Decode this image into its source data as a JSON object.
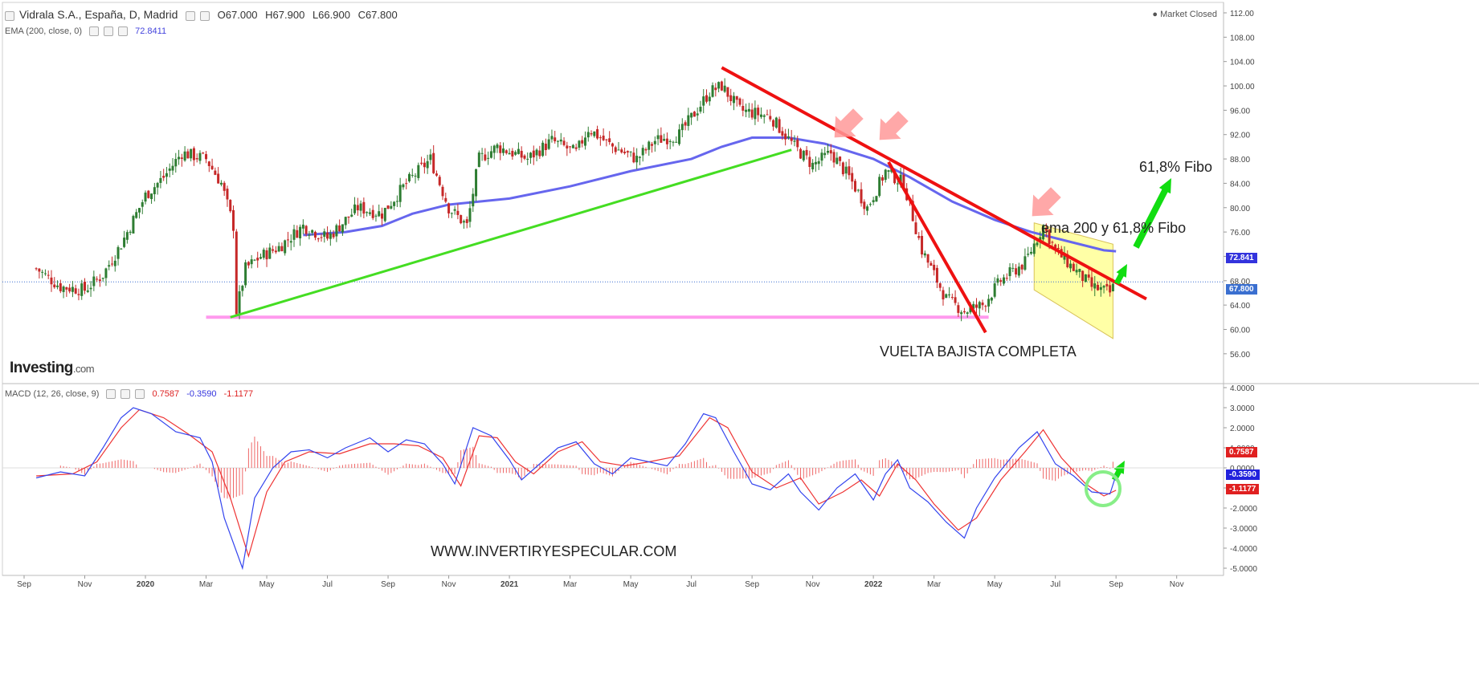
{
  "header": {
    "symbol": "Vidrala S.A., España, D, Madrid",
    "open": "O67.000",
    "high": "H67.900",
    "low": "L66.900",
    "close": "C67.800",
    "market_status": "Market Closed",
    "ema_label": "EMA (200, close, 0)",
    "ema_value": "72.8411",
    "macd_label": "MACD (12, 26, close, 9)",
    "macd_v1": "0.7587",
    "macd_v2": "-0.3590",
    "macd_v3": "-1.1177"
  },
  "brand": {
    "logo": "Investing",
    "logo_suffix": ".com"
  },
  "annotations": {
    "fibo_target": "61,8% Fibo",
    "ema_fibo": "ema 200 y 61,8% Fibo",
    "vuelta": "VUELTA BAJISTA COMPLETA",
    "website": "WWW.INVERTIRYESPECULAR.COM"
  },
  "price_tags": {
    "ema": "72.841",
    "last": "67.800"
  },
  "macd_tags": {
    "hist": "0.7587",
    "macd": "-0.3590",
    "signal": "-1.1177"
  },
  "colors": {
    "up": "#2e7d32",
    "down": "#c62828",
    "ema": "#6666ee",
    "macd": "#3344ee",
    "signal": "#ee3333",
    "support": "#ff99ee",
    "trend_up": "#44dd22",
    "trend_down": "#ee1111",
    "channel": "#ffff88"
  },
  "chart_data": [
    {
      "type": "candlestick",
      "title": "Vidrala S.A., España, D, Madrid",
      "ylim": [
        54,
        112
      ],
      "y_ticks": [
        "112.00",
        "108.00",
        "104.00",
        "100.00",
        "96.00",
        "92.00",
        "88.00",
        "84.00",
        "80.00",
        "76.00",
        "72.00",
        "68.00",
        "64.00",
        "60.00",
        "56.00"
      ],
      "x_ticks": [
        "Sep",
        "Nov",
        "2020",
        "Mar",
        "May",
        "Jul",
        "Sep",
        "Nov",
        "2021",
        "Mar",
        "May",
        "Jul",
        "Sep",
        "Nov",
        "2022",
        "Mar",
        "May",
        "Jul",
        "Sep",
        "Nov"
      ],
      "x_range": [
        0,
        19.6
      ],
      "close_path": [
        [
          0.2,
          70
        ],
        [
          0.6,
          67
        ],
        [
          1.0,
          66.5
        ],
        [
          1.3,
          69
        ],
        [
          1.6,
          74
        ],
        [
          2.0,
          82
        ],
        [
          2.3,
          85
        ],
        [
          2.6,
          89
        ],
        [
          3.0,
          88
        ],
        [
          3.25,
          84
        ],
        [
          3.45,
          77
        ],
        [
          3.5,
          63
        ],
        [
          3.65,
          70
        ],
        [
          3.9,
          72
        ],
        [
          4.2,
          73.5
        ],
        [
          4.6,
          77
        ],
        [
          5.0,
          75
        ],
        [
          5.5,
          80
        ],
        [
          5.9,
          79
        ],
        [
          6.3,
          84
        ],
        [
          6.7,
          88
        ],
        [
          7.0,
          80
        ],
        [
          7.3,
          77
        ],
        [
          7.5,
          88
        ],
        [
          7.8,
          90
        ],
        [
          8.3,
          88
        ],
        [
          8.7,
          91
        ],
        [
          9.1,
          89
        ],
        [
          9.3,
          93
        ],
        [
          9.7,
          90
        ],
        [
          10.1,
          88
        ],
        [
          10.4,
          91
        ],
        [
          10.8,
          92
        ],
        [
          11.3,
          99
        ],
        [
          11.5,
          100
        ],
        [
          11.8,
          96
        ],
        [
          12.3,
          95
        ],
        [
          12.7,
          90
        ],
        [
          13.0,
          87
        ],
        [
          13.3,
          89
        ],
        [
          13.6,
          85
        ],
        [
          13.9,
          80
        ],
        [
          14.2,
          86
        ],
        [
          14.5,
          84
        ],
        [
          14.8,
          73
        ],
        [
          15.2,
          65
        ],
        [
          15.5,
          63
        ],
        [
          15.8,
          64
        ],
        [
          16.1,
          68
        ],
        [
          16.5,
          71
        ],
        [
          16.8,
          77
        ],
        [
          17.0,
          73
        ],
        [
          17.3,
          70
        ],
        [
          17.6,
          67
        ],
        [
          17.9,
          66
        ],
        [
          18.0,
          67.8
        ]
      ],
      "series": [
        {
          "name": "EMA (200, close, 0)",
          "points": [
            [
              4.6,
              75.5
            ],
            [
              5.3,
              76
            ],
            [
              5.9,
              77
            ],
            [
              6.4,
              79
            ],
            [
              7.0,
              80.5
            ],
            [
              8.0,
              81.5
            ],
            [
              9.0,
              83.5
            ],
            [
              10.0,
              86
            ],
            [
              11.0,
              88
            ],
            [
              11.5,
              90
            ],
            [
              12.0,
              91.5
            ],
            [
              12.6,
              91.5
            ],
            [
              13.2,
              90.5
            ],
            [
              14.0,
              88
            ],
            [
              14.6,
              85
            ],
            [
              15.3,
              81
            ],
            [
              16.0,
              78
            ],
            [
              16.6,
              76
            ],
            [
              17.2,
              74.5
            ],
            [
              17.8,
              73
            ],
            [
              18.0,
              72.84
            ]
          ]
        }
      ],
      "last_price": 67.8,
      "ema_last": 72.841,
      "drawings": {
        "trend_up": [
          [
            3.4,
            62
          ],
          [
            12.65,
            89.5
          ]
        ],
        "trend_down_long": [
          [
            11.5,
            103
          ],
          [
            18.5,
            65
          ]
        ],
        "trend_down_steep": [
          [
            14.25,
            87.5
          ],
          [
            15.85,
            59.5
          ]
        ],
        "support": [
          [
            3.0,
            62
          ],
          [
            15.9,
            62
          ]
        ],
        "channel": [
          [
            16.65,
            77.5
          ],
          [
            17.95,
            74
          ],
          [
            17.95,
            58.5
          ],
          [
            16.65,
            66.5
          ]
        ]
      }
    },
    {
      "type": "line",
      "title": "MACD (12, 26, close, 9)",
      "ylim": [
        -5,
        4
      ],
      "y_ticks": [
        "4.0000",
        "3.0000",
        "2.0000",
        "1.0000",
        "0.0000",
        "-1.0000",
        "-2.0000",
        "-3.0000",
        "-4.0000",
        "-5.0000"
      ],
      "series": [
        {
          "name": "MACD",
          "points": [
            [
              0.2,
              -0.5
            ],
            [
              0.6,
              -0.2
            ],
            [
              1.0,
              -0.4
            ],
            [
              1.3,
              1.0
            ],
            [
              1.6,
              2.5
            ],
            [
              1.8,
              3.0
            ],
            [
              2.1,
              2.7
            ],
            [
              2.5,
              1.8
            ],
            [
              2.9,
              1.5
            ],
            [
              3.1,
              0.3
            ],
            [
              3.3,
              -2.5
            ],
            [
              3.6,
              -5.0
            ],
            [
              3.8,
              -1.5
            ],
            [
              4.1,
              0.0
            ],
            [
              4.4,
              0.8
            ],
            [
              4.7,
              0.9
            ],
            [
              5.0,
              0.5
            ],
            [
              5.3,
              1.0
            ],
            [
              5.7,
              1.5
            ],
            [
              6.0,
              0.8
            ],
            [
              6.3,
              1.4
            ],
            [
              6.6,
              1.2
            ],
            [
              6.9,
              0.2
            ],
            [
              7.1,
              -0.8
            ],
            [
              7.4,
              2.0
            ],
            [
              7.7,
              1.6
            ],
            [
              8.0,
              0.4
            ],
            [
              8.2,
              -0.6
            ],
            [
              8.5,
              0.2
            ],
            [
              8.8,
              1.0
            ],
            [
              9.1,
              1.3
            ],
            [
              9.4,
              0.2
            ],
            [
              9.7,
              -0.3
            ],
            [
              10.0,
              0.5
            ],
            [
              10.3,
              0.3
            ],
            [
              10.6,
              0.1
            ],
            [
              10.9,
              1.2
            ],
            [
              11.2,
              2.7
            ],
            [
              11.4,
              2.5
            ],
            [
              11.7,
              0.8
            ],
            [
              12.0,
              -0.8
            ],
            [
              12.3,
              -1.1
            ],
            [
              12.6,
              -0.3
            ],
            [
              12.8,
              -1.2
            ],
            [
              13.1,
              -2.1
            ],
            [
              13.4,
              -1.0
            ],
            [
              13.7,
              -0.3
            ],
            [
              14.0,
              -1.6
            ],
            [
              14.2,
              -0.3
            ],
            [
              14.4,
              0.4
            ],
            [
              14.6,
              -1.0
            ],
            [
              14.9,
              -1.7
            ],
            [
              15.2,
              -2.7
            ],
            [
              15.5,
              -3.5
            ],
            [
              15.7,
              -2.0
            ],
            [
              16.0,
              -0.5
            ],
            [
              16.4,
              1.0
            ],
            [
              16.7,
              1.8
            ],
            [
              17.0,
              0.2
            ],
            [
              17.3,
              -0.4
            ],
            [
              17.6,
              -1.2
            ],
            [
              17.9,
              -1.3
            ],
            [
              18.0,
              -0.359
            ]
          ]
        },
        {
          "name": "Signal",
          "points": [
            [
              0.2,
              -0.4
            ],
            [
              0.8,
              -0.3
            ],
            [
              1.2,
              0.3
            ],
            [
              1.6,
              2.0
            ],
            [
              1.9,
              2.9
            ],
            [
              2.3,
              2.5
            ],
            [
              2.7,
              1.7
            ],
            [
              3.1,
              0.8
            ],
            [
              3.4,
              -1.5
            ],
            [
              3.7,
              -4.4
            ],
            [
              4.0,
              -1.2
            ],
            [
              4.3,
              0.3
            ],
            [
              4.7,
              0.8
            ],
            [
              5.2,
              0.7
            ],
            [
              5.7,
              1.2
            ],
            [
              6.1,
              1.2
            ],
            [
              6.5,
              1.1
            ],
            [
              6.9,
              0.5
            ],
            [
              7.2,
              -0.9
            ],
            [
              7.5,
              1.6
            ],
            [
              7.8,
              1.5
            ],
            [
              8.1,
              0.3
            ],
            [
              8.4,
              -0.3
            ],
            [
              8.8,
              0.8
            ],
            [
              9.2,
              1.3
            ],
            [
              9.5,
              0.3
            ],
            [
              9.9,
              0.1
            ],
            [
              10.3,
              0.3
            ],
            [
              10.8,
              0.6
            ],
            [
              11.3,
              2.5
            ],
            [
              11.6,
              2.0
            ],
            [
              12.0,
              -0.2
            ],
            [
              12.4,
              -1.0
            ],
            [
              12.8,
              -0.5
            ],
            [
              13.1,
              -1.8
            ],
            [
              13.5,
              -1.2
            ],
            [
              13.8,
              -0.6
            ],
            [
              14.1,
              -1.4
            ],
            [
              14.4,
              0.2
            ],
            [
              14.7,
              -0.6
            ],
            [
              15.0,
              -1.8
            ],
            [
              15.4,
              -3.1
            ],
            [
              15.7,
              -2.5
            ],
            [
              16.1,
              -0.6
            ],
            [
              16.5,
              0.8
            ],
            [
              16.8,
              1.9
            ],
            [
              17.1,
              0.5
            ],
            [
              17.5,
              -0.8
            ],
            [
              17.8,
              -1.4
            ],
            [
              18.0,
              -1.118
            ]
          ]
        }
      ],
      "histogram_last": 0.7587
    }
  ]
}
